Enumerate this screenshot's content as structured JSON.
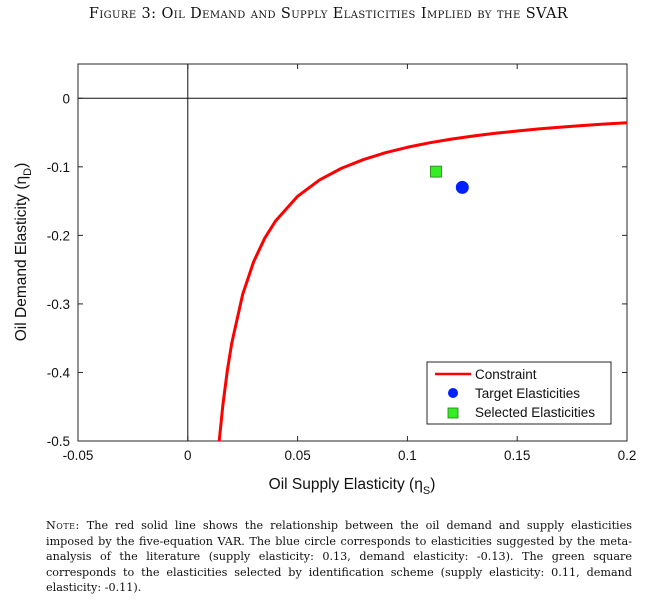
{
  "figure": {
    "caption": "Figure 3: Oil Demand and Supply Elasticities Implied by the SVAR"
  },
  "chart_data": {
    "type": "line",
    "title": "",
    "xlabel": "Oil Supply Elasticity (η",
    "xlabel_sub": "S",
    "xlabel_close": ")",
    "ylabel": "Oil Demand Elasticity (η",
    "ylabel_sub": "D",
    "ylabel_close": ")",
    "xlim": [
      -0.05,
      0.2
    ],
    "ylim": [
      -0.5,
      0.05
    ],
    "xticks": [
      -0.05,
      0,
      0.05,
      0.1,
      0.15,
      0.2
    ],
    "xtick_labels": [
      "-0.05",
      "0",
      "0.05",
      "0.1",
      "0.15",
      "0.2"
    ],
    "yticks": [
      0,
      -0.1,
      -0.2,
      -0.3,
      -0.4,
      -0.5
    ],
    "ytick_labels": [
      "0",
      "-0.1",
      "-0.2",
      "-0.3",
      "-0.4",
      "-0.5"
    ],
    "grid": false,
    "reference_lines": {
      "x": 0,
      "y": 0
    },
    "series": [
      {
        "name": "Constraint",
        "kind": "line",
        "color": "#ff0000",
        "x": [
          0.0143,
          0.016,
          0.018,
          0.02,
          0.025,
          0.03,
          0.035,
          0.04,
          0.05,
          0.06,
          0.07,
          0.08,
          0.09,
          0.1,
          0.11,
          0.12,
          0.13,
          0.14,
          0.15,
          0.16,
          0.17,
          0.18,
          0.19,
          0.2
        ],
        "y": [
          -0.5,
          -0.4467,
          -0.3972,
          -0.3575,
          -0.286,
          -0.2383,
          -0.2043,
          -0.1788,
          -0.143,
          -0.1192,
          -0.1021,
          -0.0894,
          -0.0794,
          -0.0715,
          -0.065,
          -0.0596,
          -0.055,
          -0.0511,
          -0.0477,
          -0.0447,
          -0.0421,
          -0.0397,
          -0.0376,
          -0.0358
        ]
      },
      {
        "name": "Target Elasticities",
        "kind": "point",
        "marker": "circle",
        "color": "#0020ff",
        "x": [
          0.125
        ],
        "y": [
          -0.13
        ]
      },
      {
        "name": "Selected Elasticities",
        "kind": "point",
        "marker": "square",
        "color": "#33ee22",
        "x": [
          0.113
        ],
        "y": [
          -0.107
        ]
      }
    ],
    "legend": {
      "position": "bottom-right",
      "entries": [
        "Constraint",
        "Target Elasticities",
        "Selected Elasticities"
      ]
    }
  },
  "note": {
    "label": "Note:",
    "text": " The red solid line shows the relationship between the oil demand and supply elasticities imposed by the five-equation VAR. The blue circle corresponds to elasticities suggested by the meta-analysis of the literature (supply elasticity: 0.13, demand elasticity: -0.13). The green square corresponds to the elasticities selected by identification scheme (supply elasticity: 0.11, demand elasticity: -0.11)."
  }
}
